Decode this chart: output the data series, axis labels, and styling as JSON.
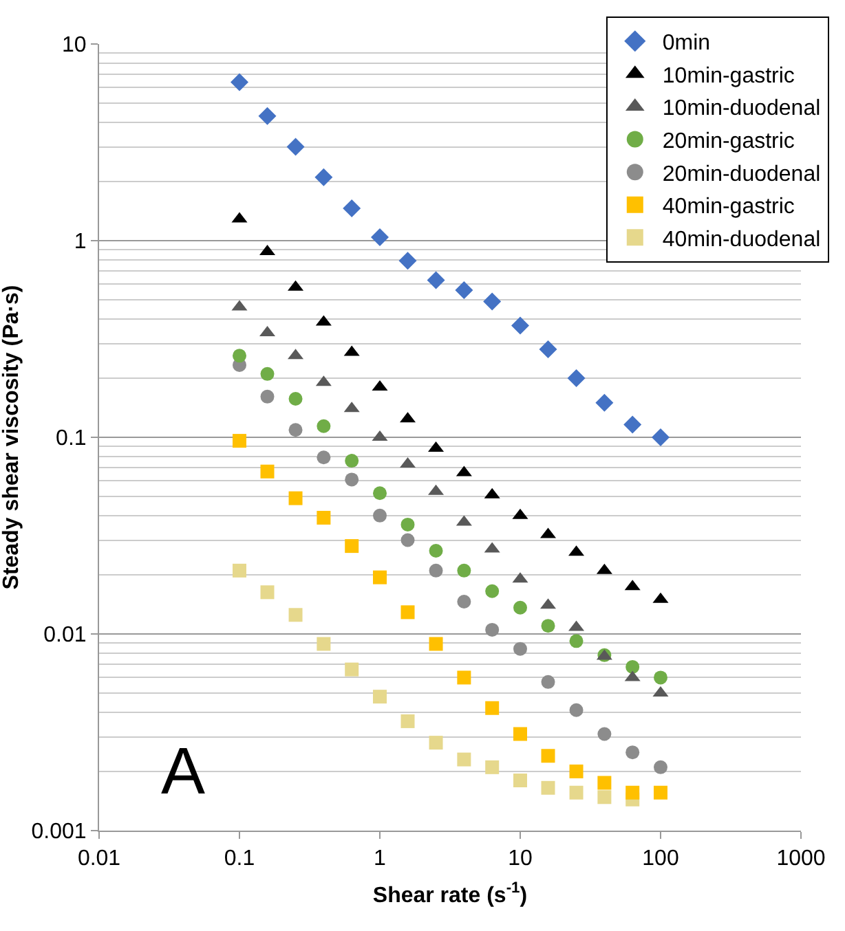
{
  "chart_data": {
    "type": "scatter",
    "xlabel": "Shear rate (s$^{-1}$)",
    "ylabel": "Steady shear viscosity (Pa·s)",
    "log": "xy",
    "grid": "y",
    "legend": "top right",
    "x": [
      0.1,
      0.158,
      0.251,
      0.398,
      0.631,
      1,
      1.58,
      2.51,
      3.98,
      6.31,
      10,
      15.8,
      25.1,
      39.8,
      63.1,
      100
    ],
    "xlim": [
      0.01,
      1000
    ],
    "xticks": [
      0.01,
      0.1,
      1,
      10,
      100,
      1000
    ],
    "ylim": [
      0.001,
      10
    ],
    "yticks": [
      0.001,
      0.01,
      0.1,
      1,
      10
    ],
    "annotations": [
      "A"
    ],
    "series": [
      {
        "name": "0min",
        "color": "#4472c4",
        "marker": "diamond",
        "values": [
          6.4,
          4.3,
          3.0,
          2.1,
          1.46,
          1.04,
          0.79,
          0.63,
          0.56,
          0.49,
          0.37,
          0.28,
          0.2,
          0.15,
          0.116,
          0.1
        ]
      },
      {
        "name": "10min-gastric",
        "color": "#000000",
        "marker": "triangle",
        "values": [
          1.29,
          0.88,
          0.58,
          0.385,
          0.27,
          0.18,
          0.124,
          0.088,
          0.066,
          0.051,
          0.04,
          0.032,
          0.026,
          0.021,
          0.0174,
          0.015
        ]
      },
      {
        "name": "10min-duodenal",
        "color": "#595959",
        "marker": "triangle",
        "values": [
          0.46,
          0.34,
          0.26,
          0.19,
          0.14,
          0.1,
          0.073,
          0.053,
          0.037,
          0.027,
          0.019,
          0.014,
          0.0108,
          0.0077,
          0.006,
          0.005
        ]
      },
      {
        "name": "20min-gastric",
        "color": "#70ad47",
        "marker": "circle",
        "values": [
          0.26,
          0.21,
          0.157,
          0.114,
          0.076,
          0.052,
          0.036,
          0.0265,
          0.021,
          0.0165,
          0.0136,
          0.011,
          0.0092,
          0.0078,
          0.0068,
          0.006
        ]
      },
      {
        "name": "20min-duodenal",
        "color": "#8c8c8c",
        "marker": "circle",
        "values": [
          0.233,
          0.161,
          0.109,
          0.079,
          0.061,
          0.04,
          0.03,
          0.021,
          0.0146,
          0.0105,
          0.0084,
          0.0057,
          0.0041,
          0.0031,
          0.0025,
          0.0021
        ]
      },
      {
        "name": "40min-gastric",
        "color": "#ffc000",
        "marker": "square",
        "values": [
          0.096,
          0.067,
          0.049,
          0.039,
          0.028,
          0.0194,
          0.0129,
          0.0089,
          0.006,
          0.0042,
          0.0031,
          0.0024,
          0.002,
          0.00175,
          0.00156,
          0.00156
        ]
      },
      {
        "name": "40min-duodenal",
        "color": "#e6d88c",
        "marker": "square",
        "values": [
          0.021,
          0.0163,
          0.0125,
          0.0089,
          0.0066,
          0.0048,
          0.0036,
          0.0028,
          0.0023,
          0.0021,
          0.0018,
          0.00165,
          0.00156,
          0.00148,
          0.00144,
          null
        ]
      }
    ]
  }
}
